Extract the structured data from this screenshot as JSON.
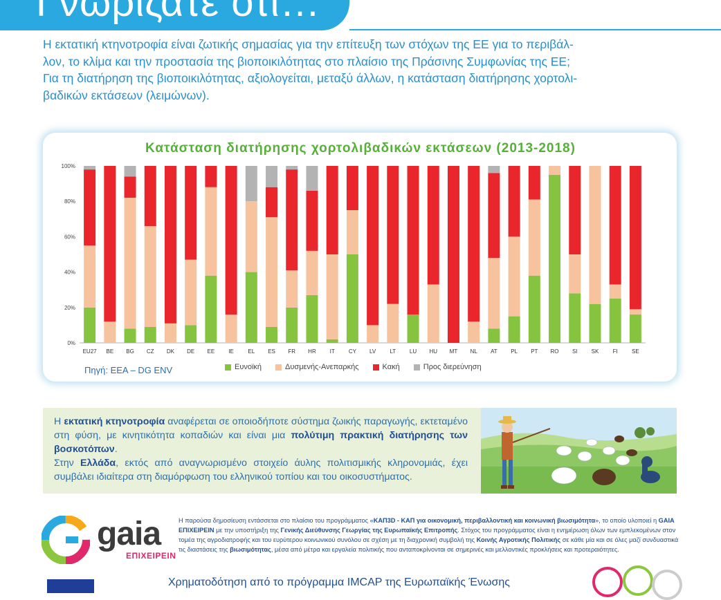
{
  "header": {
    "title": "Γνωρίζατε ότι…"
  },
  "intro": {
    "lines": [
      "Η εκτατική κτηνοτροφία είναι ζωτικής σημασίας για την επίτευξη των στόχων της ΕΕ για το περιβάλ-",
      "λον, το κλίμα και την προστασία της βιοποικιλότητας στο πλαίσιο της Πράσινης Συμφωνίας της ΕΕ;",
      "Για τη διατήρηση της βιοποικιλότητας, αξιολογείται, μεταξύ άλλων, η κατάσταση διατήρησης χορτολι-",
      "βαδικών εκτάσεων (λειμώνων)."
    ]
  },
  "chart_data": {
    "type": "bar",
    "stacked": true,
    "title": "Κατάσταση διατήρησης χορτολιβαδικών εκτάσεων (2013-2018)",
    "categories": [
      "EU27",
      "BE",
      "BG",
      "CZ",
      "DK",
      "DE",
      "EE",
      "IE",
      "EL",
      "ES",
      "FR",
      "HR",
      "IT",
      "CY",
      "LV",
      "LT",
      "LU",
      "HU",
      "MT",
      "NL",
      "AT",
      "PL",
      "PT",
      "RO",
      "SI",
      "SK",
      "FI",
      "SE"
    ],
    "y_ticks": [
      "0%",
      "20%",
      "40%",
      "60%",
      "80%",
      "100%"
    ],
    "ylim": [
      0,
      100
    ],
    "series": [
      {
        "name": "Ευνοϊκή",
        "color": "#86c440",
        "values": [
          20,
          0,
          8,
          9,
          0,
          10,
          38,
          0,
          40,
          9,
          20,
          27,
          2,
          50,
          0,
          0,
          16,
          0,
          0,
          0,
          8,
          15,
          38,
          95,
          28,
          22,
          25,
          16
        ]
      },
      {
        "name": "Δυσμενής-Ανεπαρκής",
        "color": "#f7c39e",
        "values": [
          35,
          12,
          74,
          57,
          11,
          37,
          50,
          16,
          40,
          62,
          21,
          25,
          48,
          25,
          10,
          22,
          0,
          33,
          0,
          12,
          40,
          45,
          43,
          5,
          22,
          78,
          8,
          3
        ]
      },
      {
        "name": "Κακή",
        "color": "#e8262b",
        "values": [
          43,
          88,
          12,
          34,
          89,
          53,
          12,
          84,
          0,
          17,
          57,
          34,
          50,
          25,
          90,
          78,
          84,
          67,
          100,
          88,
          48,
          40,
          19,
          0,
          50,
          0,
          67,
          81
        ]
      },
      {
        "name": "Προς διερεύνηση",
        "color": "#b3b3b3",
        "values": [
          2,
          0,
          6,
          0,
          0,
          0,
          0,
          0,
          20,
          12,
          2,
          14,
          0,
          0,
          0,
          0,
          0,
          0,
          0,
          0,
          4,
          0,
          0,
          0,
          0,
          0,
          0,
          0
        ]
      }
    ],
    "source": "Πηγή: EEA – DG ENV"
  },
  "green_box": {
    "p1": [
      "Η ",
      "εκτατική κτηνοτροφία",
      " αναφέρεται σε οποιοδήποτε σύστημα ζωικής παραγωγής, εκτεταμένο στη φύση, με κινητικότητα κοπαδιών και είναι μια ",
      "πολύτιμη πρακτική διατήρησης των βοσκοτόπων",
      "."
    ],
    "p2": [
      "Στην ",
      "Ελλάδα",
      ", εκτός από αναγνωρισμένο στοιχείο άυλης πολιτισμικής κληρονομιάς, έχει συμβάλει ιδιαίτερα στη διαμόρφωση του ελληνικού τοπίου και του οικοσυστήματος."
    ]
  },
  "footer": {
    "logo_word": "gaia",
    "logo_sub": "ΕΠΙΧΕΙΡΕΙΝ",
    "disclaimer": [
      "Η παρούσα δημοσίευση εντάσσεται στο πλαίσιο του προγράμματος «",
      "ΚΑΠ3D - ΚΑΠ για οικονομική, περιβαλλοντική και κοινωνική βιωσιμότητα",
      "», το οποίο υλοποιεί η ",
      "GAIA ΕΠΙΧΕΙΡΕΙΝ",
      " με την υποστήριξη της ",
      "Γενικής Διεύθυνσης Γεωργίας της Ευρωπαϊκής Επιτροπής",
      ". Στόχος του προγράμματος είναι η ενημέρωση όλων των εμπλεκομένων στον τομέα της αγροδιατροφής και του ευρύτερου κοινωνικού συνόλου σε σχέση με τη διαχρονική συμβολή της ",
      "Κοινής Αγροτικής Πολιτικής",
      " σε κάθε μία και σε όλες μαζί συνδυαστικά τις διαστάσεις της ",
      "βιωσιμότητας",
      ", μέσα από μέτρα και εργαλεία πολιτικής που ανταποκρίνονται σε σημερινές και μελλοντικές προκλήσεις και προτεραιότητες."
    ],
    "funding": "Χρηματοδότηση από το πρόγραμμα IMCAP της Ευρωπαϊκής Ένωσης"
  }
}
